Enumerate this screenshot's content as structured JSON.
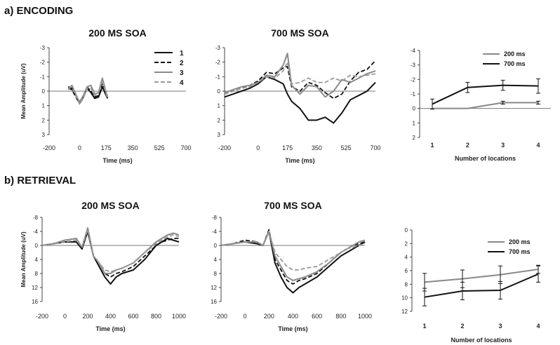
{
  "sections": [
    {
      "label": "a) ENCODING"
    },
    {
      "label": "b) RETRIEVAL"
    }
  ],
  "chart_data": [
    {
      "id": "enc200",
      "type": "line",
      "title": "200 MS SOA",
      "xlabel": "Time (ms)",
      "ylabel": "Mean Amplitude (uV)",
      "xlim": [
        -200,
        700
      ],
      "ylim": [
        -3,
        3
      ],
      "y_inverted": true,
      "xticks": [
        -200,
        0,
        175,
        350,
        525,
        700
      ],
      "yticks": [
        -3,
        -2,
        -1,
        0,
        1,
        2,
        3
      ],
      "legend": [
        "1",
        "2",
        "3",
        "4"
      ],
      "legend_position": "top-right",
      "x": [
        -75,
        -50,
        -25,
        0,
        25,
        50,
        75,
        100,
        125,
        150,
        175,
        185
      ],
      "series": [
        {
          "name": "1",
          "style": "solid-black",
          "values": [
            -0.3,
            -0.2,
            0.3,
            0.75,
            0.35,
            -0.2,
            0.1,
            0.5,
            0.4,
            -0.3,
            0.3,
            0.5
          ]
        },
        {
          "name": "2",
          "style": "dashed-black",
          "values": [
            -0.2,
            -0.1,
            0.4,
            0.85,
            0.4,
            -0.3,
            0.0,
            0.4,
            0.3,
            -0.5,
            0.2,
            0.4
          ]
        },
        {
          "name": "3",
          "style": "solid-gray",
          "values": [
            -0.1,
            -0.4,
            0.2,
            0.8,
            0.3,
            -0.3,
            -0.4,
            0.2,
            0.1,
            -0.9,
            0.1,
            0.4
          ]
        },
        {
          "name": "4",
          "style": "dashed-gray",
          "values": [
            -0.2,
            -0.3,
            0.3,
            0.9,
            0.5,
            -0.2,
            -0.2,
            0.3,
            0.1,
            -0.7,
            0.2,
            0.5
          ]
        }
      ]
    },
    {
      "id": "enc700",
      "type": "line",
      "title": "700 MS SOA",
      "xlabel": "Time (ms)",
      "ylabel": "",
      "xlim": [
        -200,
        700
      ],
      "ylim": [
        -3,
        3
      ],
      "y_inverted": true,
      "xticks": [
        -200,
        0,
        175,
        350,
        525,
        700
      ],
      "yticks": [
        -3,
        -2,
        -1,
        0,
        1,
        2,
        3
      ],
      "x": [
        -200,
        -150,
        -100,
        -50,
        0,
        50,
        100,
        150,
        175,
        200,
        250,
        300,
        350,
        400,
        450,
        500,
        550,
        600,
        650,
        700
      ],
      "series": [
        {
          "name": "1",
          "style": "solid-black",
          "values": [
            0.4,
            0.2,
            0.0,
            -0.2,
            -0.5,
            -1.0,
            -0.8,
            -0.5,
            0.2,
            0.7,
            1.2,
            2.0,
            2.0,
            1.8,
            2.2,
            1.5,
            0.6,
            0.3,
            0.0,
            -0.6
          ]
        },
        {
          "name": "2",
          "style": "dashed-black",
          "values": [
            0.2,
            0.0,
            -0.2,
            -0.4,
            -0.7,
            -1.3,
            -1.2,
            -1.6,
            -1.7,
            -0.3,
            0.0,
            -0.6,
            -0.4,
            0.1,
            0.5,
            0.2,
            -0.7,
            -1.3,
            -1.5,
            -2.1
          ]
        },
        {
          "name": "3",
          "style": "solid-gray",
          "values": [
            0.1,
            -0.1,
            -0.3,
            -0.4,
            -0.6,
            -1.1,
            -1.0,
            -1.8,
            -2.6,
            -0.4,
            0.2,
            -0.4,
            -0.3,
            0.4,
            0.0,
            -0.8,
            -0.6,
            -0.9,
            -1.2,
            -1.4
          ]
        },
        {
          "name": "4",
          "style": "dashed-gray",
          "values": [
            0.2,
            0.0,
            -0.2,
            -0.3,
            -0.6,
            -1.0,
            -0.9,
            -1.4,
            -2.0,
            -0.5,
            -0.6,
            -0.9,
            -0.6,
            -0.6,
            -0.9,
            -0.7,
            -1.1,
            -1.0,
            -1.1,
            -1.2
          ]
        }
      ]
    },
    {
      "id": "enc_summary",
      "type": "line",
      "title": "",
      "xlabel": "Number of locations",
      "ylabel": "",
      "ylim": [
        -4,
        2
      ],
      "y_inverted": true,
      "yticks": [
        -4,
        -3,
        -2,
        -1,
        0,
        1,
        2
      ],
      "categories": [
        "1",
        "2",
        "3",
        "4"
      ],
      "legend_position": "top-right",
      "series": [
        {
          "name": "200 ms",
          "color": "#888888",
          "values": [
            0.0,
            0.0,
            -0.4,
            -0.4
          ],
          "errors": [
            0.0,
            0.0,
            0.1,
            0.1
          ]
        },
        {
          "name": "700 ms",
          "color": "#111111",
          "values": [
            -0.3,
            -1.45,
            -1.6,
            -1.55
          ],
          "errors": [
            0.35,
            0.35,
            0.35,
            0.5
          ]
        }
      ]
    },
    {
      "id": "ret200",
      "type": "line",
      "title": "200 MS SOA",
      "xlabel": "Time (ms)",
      "ylabel": "Mean Amplitude (uV)",
      "xlim": [
        -200,
        1000
      ],
      "ylim": [
        -8,
        16
      ],
      "y_inverted": true,
      "xticks": [
        -200,
        0,
        200,
        400,
        600,
        800,
        1000
      ],
      "yticks": [
        -8,
        -4,
        0,
        4,
        8,
        12,
        16
      ],
      "x": [
        -200,
        -100,
        0,
        100,
        150,
        200,
        250,
        300,
        350,
        400,
        450,
        500,
        600,
        700,
        800,
        850,
        900,
        950,
        1000
      ],
      "series": [
        {
          "name": "1",
          "style": "solid-black",
          "values": [
            0,
            -0.5,
            -1,
            -1,
            1,
            -4,
            3,
            6,
            9,
            11,
            9,
            8,
            7,
            4,
            0,
            -1,
            -2,
            -1.5,
            -1
          ]
        },
        {
          "name": "2",
          "style": "dashed-black",
          "values": [
            0,
            -0.5,
            -1,
            -1.5,
            1,
            -4.5,
            3,
            5,
            8,
            9,
            8,
            7.5,
            6,
            3,
            0,
            -1,
            -1.5,
            -2,
            -2
          ]
        },
        {
          "name": "3",
          "style": "solid-gray",
          "values": [
            0,
            -0.5,
            -1.5,
            -2,
            0.5,
            -5,
            3,
            5,
            8,
            8,
            7,
            6.5,
            5,
            2,
            -1,
            -2,
            -3,
            -3.5,
            -3
          ]
        },
        {
          "name": "4",
          "style": "dashed-gray",
          "values": [
            0,
            -0.5,
            -1,
            -1.5,
            0.5,
            -4.5,
            3,
            5,
            7,
            7.5,
            7,
            6.5,
            5,
            2,
            -0.5,
            -1.5,
            -2.5,
            -3,
            -2.5
          ]
        }
      ]
    },
    {
      "id": "ret700",
      "type": "line",
      "title": "700 MS SOA",
      "xlabel": "Time (ms)",
      "ylabel": "",
      "xlim": [
        -200,
        1000
      ],
      "ylim": [
        -8,
        16
      ],
      "y_inverted": true,
      "xticks": [
        -200,
        0,
        200,
        400,
        600,
        800,
        1000
      ],
      "yticks": [
        -8,
        -4,
        0,
        4,
        8,
        12,
        16
      ],
      "x": [
        -200,
        -100,
        0,
        100,
        150,
        200,
        250,
        300,
        350,
        400,
        450,
        500,
        600,
        700,
        800,
        850,
        900,
        950,
        1000
      ],
      "series": [
        {
          "name": "1",
          "style": "solid-black",
          "values": [
            0,
            -0.5,
            -1,
            -0.5,
            0,
            -4,
            5,
            9,
            12,
            13.5,
            12,
            11,
            9,
            6,
            3,
            2,
            1,
            0,
            -1
          ]
        },
        {
          "name": "2",
          "style": "dashed-black",
          "values": [
            0,
            -0.5,
            -1.5,
            -1,
            0,
            -4.5,
            4,
            7,
            10,
            11,
            10,
            9.5,
            8,
            5,
            2,
            1,
            0,
            -0.5,
            -1
          ]
        },
        {
          "name": "3",
          "style": "solid-gray",
          "values": [
            0,
            -0.5,
            -1,
            -1,
            0,
            -4,
            3,
            6,
            9,
            10,
            9.5,
            9,
            7.5,
            5,
            2,
            1,
            0,
            -1,
            -1.5
          ]
        },
        {
          "name": "4",
          "style": "dashed-gray",
          "values": [
            0,
            -0.5,
            -1,
            -1,
            0,
            -4,
            2,
            4,
            6,
            7,
            7,
            6.5,
            6,
            4,
            2,
            1,
            0.5,
            0,
            -0.5
          ]
        }
      ]
    },
    {
      "id": "ret_summary",
      "type": "line",
      "title": "",
      "xlabel": "Number of locations",
      "ylabel": "",
      "ylim": [
        0,
        12
      ],
      "yticks": [
        0,
        2,
        4,
        6,
        8,
        10,
        12
      ],
      "categories": [
        "1",
        "2",
        "3",
        "4"
      ],
      "legend_position": "top-right",
      "series": [
        {
          "name": "200 ms",
          "color": "#888888",
          "values": [
            7.7,
            7.2,
            6.6,
            5.8
          ],
          "errors": [
            1.3,
            1.3,
            1.3,
            0.6
          ]
        },
        {
          "name": "700 ms",
          "color": "#111111",
          "values": [
            9.9,
            9.0,
            8.9,
            6.5
          ],
          "errors": [
            1.3,
            1.3,
            1.3,
            1.2
          ]
        }
      ]
    }
  ]
}
